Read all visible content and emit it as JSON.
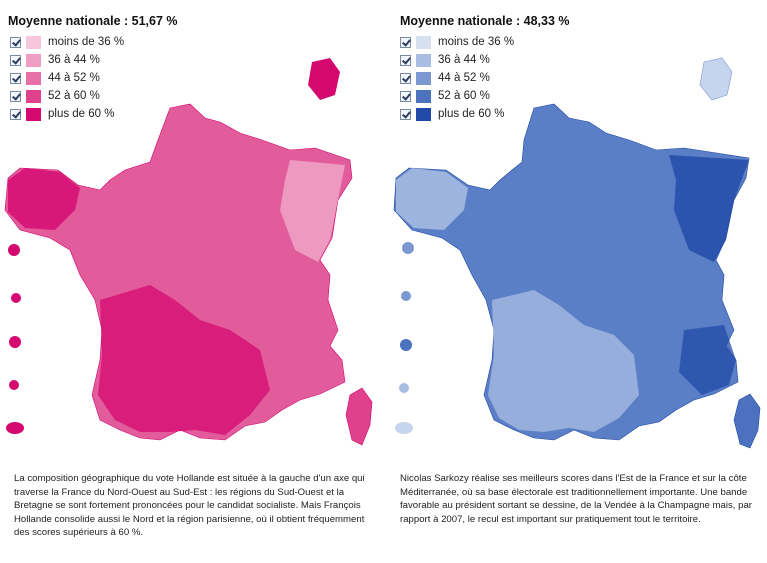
{
  "hollande": {
    "title": "Moyenne nationale : 51,67 %",
    "legend": [
      {
        "label": "moins de 36 %",
        "color": "#f6c6dc"
      },
      {
        "label": "36 à 44 %",
        "color": "#ef9dc3"
      },
      {
        "label": "44 à 52 %",
        "color": "#e86ea8"
      },
      {
        "label": "52 à 60 %",
        "color": "#e0418c"
      },
      {
        "label": "plus de 60 %",
        "color": "#d4086f"
      }
    ],
    "caption": "La composition géographique du vote Hollande est située à la gauche d'un axe qui traverse la France du Nord-Ouest au Sud-Est : les régions du Sud-Ouest et la Bretagne se sont fortement prononcées pour le candidat socialiste. Mais François Hollande consolide aussi le Nord et la région parisienne, où il obtient fréquemment des scores supérieurs à 60 %."
  },
  "sarkozy": {
    "title": "Moyenne nationale : 48,33 %",
    "legend": [
      {
        "label": "moins de 36 %",
        "color": "#d6e0f1"
      },
      {
        "label": "36 à 44 %",
        "color": "#a9bde3"
      },
      {
        "label": "44 à 52 %",
        "color": "#7b98d2"
      },
      {
        "label": "52 à 60 %",
        "color": "#4c72bf"
      },
      {
        "label": "plus de 60 %",
        "color": "#2149a8"
      }
    ],
    "caption": "Nicolas Sarkozy réalise ses meilleurs scores dans l'Est de la France et sur la côte Méditerranée, où sa base électorale est traditionnellement importante. Une bande favorable au président sortant se dessine, de la Vendée à la Champagne mais, par rapport à 2007, le recul est important sur pratiquement tout le territoire."
  }
}
